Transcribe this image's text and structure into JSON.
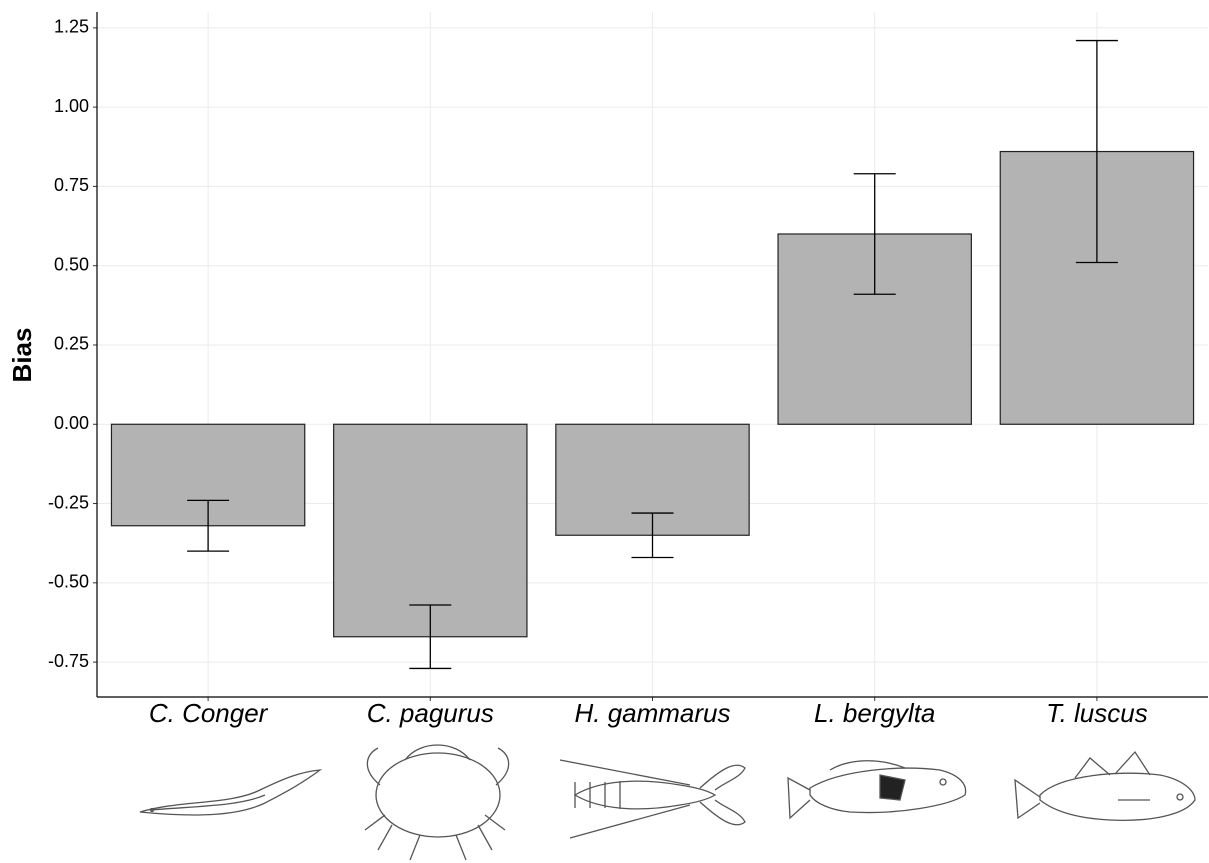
{
  "chart_data": {
    "type": "bar",
    "y_label": "Bias",
    "categories": [
      "C. Conger",
      "C. pagurus",
      "H. gammarus",
      "L. bergylta",
      "T. luscus"
    ],
    "values": [
      -0.32,
      -0.67,
      -0.35,
      0.6,
      0.86
    ],
    "errors": [
      0.08,
      0.1,
      0.07,
      0.19,
      0.35
    ],
    "color": "#b3b3b3",
    "ylim": [
      -0.86,
      1.3
    ],
    "yticks": [
      {
        "value": -0.75,
        "label": "-0.75"
      },
      {
        "value": -0.5,
        "label": "-0.50"
      },
      {
        "value": -0.25,
        "label": "-0.25"
      },
      {
        "value": 0,
        "label": "0.00"
      },
      {
        "value": 0.25,
        "label": "0.25"
      },
      {
        "value": 0.5,
        "label": "0.50"
      },
      {
        "value": 0.75,
        "label": "0.75"
      },
      {
        "value": 1,
        "label": "1.00"
      },
      {
        "value": 1.25,
        "label": "1.25"
      }
    ],
    "grid": true
  }
}
